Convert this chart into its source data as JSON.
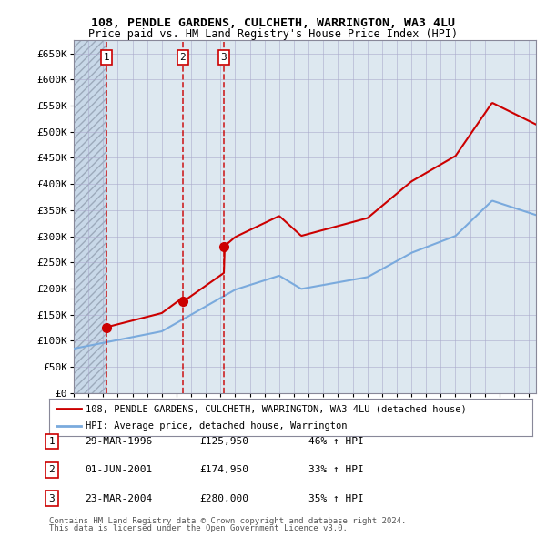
{
  "title1": "108, PENDLE GARDENS, CULCHETH, WARRINGTON, WA3 4LU",
  "title2": "Price paid vs. HM Land Registry's House Price Index (HPI)",
  "ylim": [
    0,
    675000
  ],
  "yticks": [
    0,
    50000,
    100000,
    150000,
    200000,
    250000,
    300000,
    350000,
    400000,
    450000,
    500000,
    550000,
    600000,
    650000
  ],
  "ytick_labels": [
    "£0",
    "£50K",
    "£100K",
    "£150K",
    "£200K",
    "£250K",
    "£300K",
    "£350K",
    "£400K",
    "£450K",
    "£500K",
    "£550K",
    "£600K",
    "£650K"
  ],
  "xlim_start": 1994.0,
  "xlim_end": 2025.5,
  "transactions": [
    {
      "num": 1,
      "date_str": "29-MAR-1996",
      "date_x": 1996.24,
      "price": 125950,
      "pct": "46%",
      "dir": "↑"
    },
    {
      "num": 2,
      "date_str": "01-JUN-2001",
      "date_x": 2001.42,
      "price": 174950,
      "pct": "33%",
      "dir": "↑"
    },
    {
      "num": 3,
      "date_str": "23-MAR-2004",
      "date_x": 2004.23,
      "price": 280000,
      "pct": "35%",
      "dir": "↑"
    }
  ],
  "legend_label_red": "108, PENDLE GARDENS, CULCHETH, WARRINGTON, WA3 4LU (detached house)",
  "legend_label_blue": "HPI: Average price, detached house, Warrington",
  "footnote1": "Contains HM Land Registry data © Crown copyright and database right 2024.",
  "footnote2": "This data is licensed under the Open Government Licence v3.0.",
  "red_color": "#cc0000",
  "blue_color": "#7aaadd",
  "grid_color": "#aaaacc",
  "bg_plot": "#dde8f0",
  "bg_hatch": "#c8d8e8",
  "table_rows": [
    {
      "num": "1",
      "date": "29-MAR-1996",
      "price": "£125,950",
      "info": "46% ↑ HPI"
    },
    {
      "num": "2",
      "date": "01-JUN-2001",
      "price": "£174,950",
      "info": "33% ↑ HPI"
    },
    {
      "num": "3",
      "date": "23-MAR-2004",
      "price": "£280,000",
      "info": "35% ↑ HPI"
    }
  ]
}
